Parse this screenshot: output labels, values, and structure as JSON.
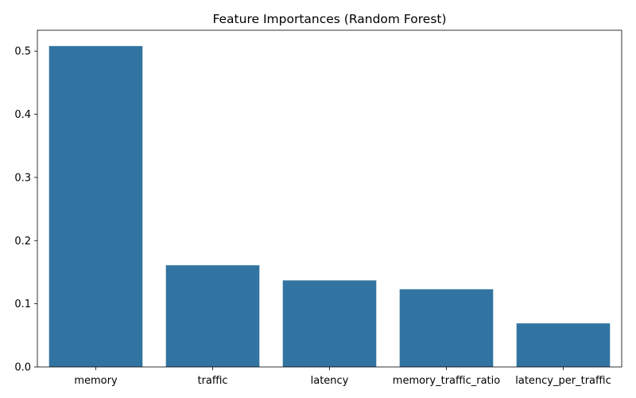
{
  "chart_data": {
    "type": "bar",
    "title": "Feature Importances (Random Forest)",
    "xlabel": "",
    "ylabel": "",
    "categories": [
      "memory",
      "traffic",
      "latency",
      "memory_traffic_ratio",
      "latency_per_traffic"
    ],
    "values": [
      0.508,
      0.161,
      0.137,
      0.123,
      0.069
    ],
    "ylim": [
      0,
      0.533
    ],
    "yticks": [
      0.0,
      0.1,
      0.2,
      0.3,
      0.4,
      0.5
    ],
    "ytick_labels": [
      "0.0",
      "0.1",
      "0.2",
      "0.3",
      "0.4",
      "0.5"
    ],
    "grid": false,
    "bar_color": "#3274a1"
  }
}
